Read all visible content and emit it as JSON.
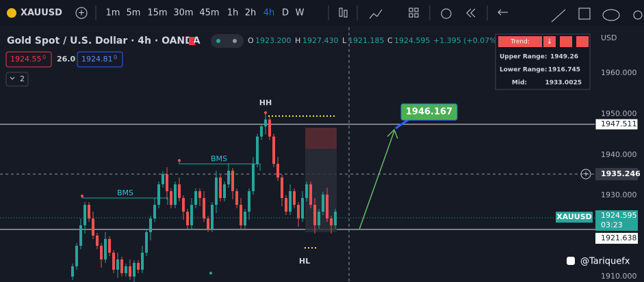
{
  "toolbar": {
    "symbol": "XAUUSD",
    "intervals": [
      "1m",
      "5m",
      "15m",
      "30m",
      "45m",
      "1h",
      "2h",
      "4h",
      "D",
      "W"
    ]
  },
  "header": {
    "title": "Gold Spot / U.S. Dollar · 4h · OANDA",
    "open_label": "O",
    "open": "1923.200",
    "high_label": "H",
    "high": "1927.430",
    "low_label": "L",
    "low": "1921.185",
    "close_label": "C",
    "close": "1924.595",
    "change": "+1.395 (+0.07%)"
  },
  "quote": {
    "bid": "1924.55",
    "bid_sup": "0",
    "spread": "26.0",
    "ask": "1924.81",
    "ask_sup": "0",
    "indicators": "2"
  },
  "trend_panel": {
    "title": "Trend:",
    "rows": [
      {
        "label": "Upper Range:",
        "value": "1949.26"
      },
      {
        "label": "Lower Range:",
        "value": "1916.745"
      },
      {
        "label": "Mid:",
        "value": "1933.0025"
      }
    ]
  },
  "price_axis": {
    "currency": "USD",
    "ticks": [
      "1960.000",
      "1950.000",
      "1940.000",
      "1930.000",
      "1910.000"
    ],
    "levels": [
      "1947.511",
      "1935.246",
      "1921.638"
    ],
    "current": {
      "symbol": "XAUUSD",
      "price": "1924.595",
      "countdown": "03:23"
    }
  },
  "annotations": {
    "target": "1946.167",
    "hh": "HH",
    "hl": "HL",
    "bms": [
      "BMS",
      "BMS"
    ]
  },
  "watermark": "@Tariquefx"
}
